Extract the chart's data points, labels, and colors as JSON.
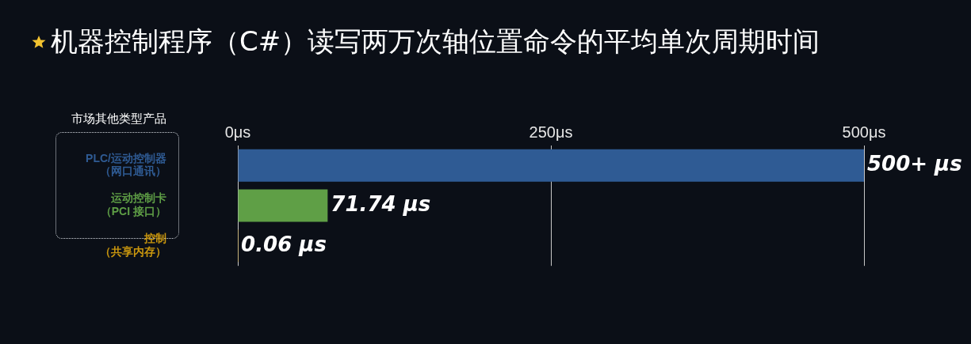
{
  "chart_data": {
    "type": "bar",
    "orientation": "horizontal",
    "title": "机器控制程序（C#）读写两万次轴位置命令的平均单次周期时间",
    "categories": [
      "PLC/运动控制器（网口通讯）",
      "运动控制卡（PCI 接口）",
      "控制（共享内存）"
    ],
    "values": [
      500,
      71.74,
      0.06
    ],
    "colors": [
      "#2f5b94",
      "#5f9f46",
      "#c9960e"
    ],
    "value_labels": [
      "500+ μs",
      "71.74 μs",
      "0.06 μs"
    ],
    "xlim": [
      0,
      500
    ],
    "xticks": [
      {
        "value": 0,
        "label": "0μs"
      },
      {
        "value": 250,
        "label": "250μs"
      },
      {
        "value": 500,
        "label": "500μs"
      }
    ],
    "grid": "x",
    "legend": false,
    "annotations": [
      "市场其他类型产品"
    ]
  }
}
